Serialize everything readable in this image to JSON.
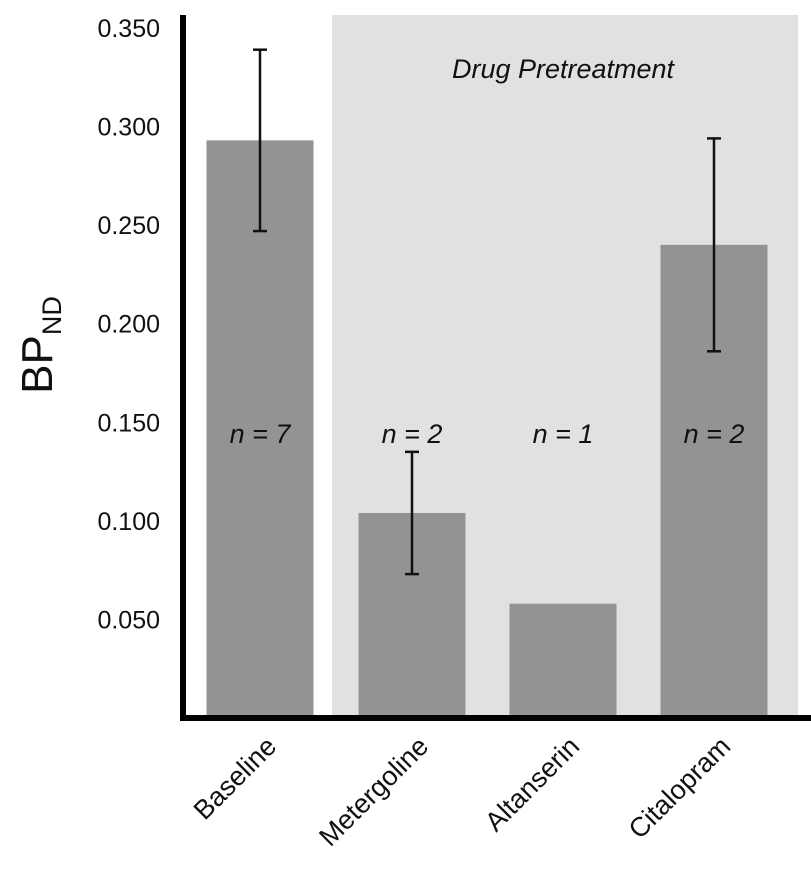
{
  "chart_data": {
    "type": "bar",
    "categories": [
      "Baseline",
      "Metergoline",
      "Altanserin",
      "Citalopram"
    ],
    "values": [
      0.293,
      0.104,
      0.058,
      0.24
    ],
    "error": [
      0.046,
      0.031,
      null,
      0.054
    ],
    "n_labels": [
      "n = 7",
      "n = 2",
      "n = 1",
      "n = 2"
    ],
    "ylabel": "BP",
    "ylabel_subscript": "ND",
    "yticks": [
      "0.050",
      "0.100",
      "0.150",
      "0.200",
      "0.250",
      "0.300",
      "0.350"
    ],
    "ylim": [
      0.0,
      0.35
    ],
    "shaded_region": {
      "label": "Drug Pretreatment",
      "categories": [
        "Metergoline",
        "Altanserin",
        "Citalopram"
      ]
    },
    "grid": false,
    "colors": {
      "bar": "#939393",
      "shade": "#e1e1e1",
      "axis": "#000000"
    }
  }
}
